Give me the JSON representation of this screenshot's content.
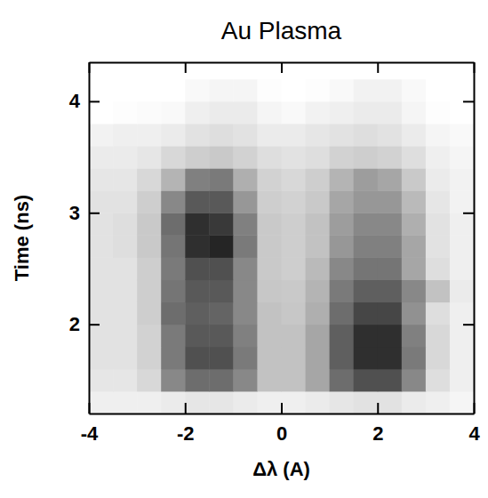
{
  "chart_data": {
    "type": "heatmap",
    "title": "Au Plasma",
    "x_label": "Δλ (A)",
    "y_label": "Time (ns)",
    "xlim": [
      -4,
      4
    ],
    "xticks": [
      -4,
      -2,
      0,
      2,
      4
    ],
    "ylim": [
      1.2,
      4.35
    ],
    "yticks": [
      2,
      3,
      4
    ],
    "x_bins": [
      -4,
      -3.5,
      -3,
      -2.5,
      -2,
      -1.5,
      -1,
      -0.5,
      0,
      0.5,
      1,
      1.5,
      2,
      2.5,
      3,
      3.5,
      4
    ],
    "y_bins": [
      1.2,
      1.4,
      1.6,
      1.8,
      2.0,
      2.2,
      2.4,
      2.6,
      2.8,
      3.0,
      3.2,
      3.4,
      3.6,
      3.8,
      4.0,
      4.2,
      4.4
    ],
    "zlim": [
      0,
      1
    ],
    "z": [
      [
        0.12,
        0.12,
        0.12,
        0.15,
        0.18,
        0.18,
        0.15,
        0.12,
        0.12,
        0.15,
        0.18,
        0.2,
        0.2,
        0.15,
        0.12,
        0.08
      ],
      [
        0.18,
        0.18,
        0.25,
        0.55,
        0.65,
        0.65,
        0.55,
        0.35,
        0.35,
        0.45,
        0.65,
        0.75,
        0.75,
        0.55,
        0.22,
        0.12
      ],
      [
        0.2,
        0.2,
        0.28,
        0.6,
        0.75,
        0.75,
        0.6,
        0.35,
        0.35,
        0.45,
        0.7,
        0.85,
        0.85,
        0.6,
        0.25,
        0.12
      ],
      [
        0.2,
        0.2,
        0.28,
        0.6,
        0.72,
        0.72,
        0.58,
        0.35,
        0.35,
        0.45,
        0.7,
        0.85,
        0.85,
        0.58,
        0.25,
        0.12
      ],
      [
        0.2,
        0.2,
        0.3,
        0.65,
        0.7,
        0.68,
        0.55,
        0.35,
        0.33,
        0.42,
        0.65,
        0.78,
        0.78,
        0.52,
        0.22,
        0.12
      ],
      [
        0.2,
        0.2,
        0.3,
        0.62,
        0.72,
        0.72,
        0.55,
        0.33,
        0.32,
        0.4,
        0.6,
        0.7,
        0.7,
        0.55,
        0.35,
        0.15
      ],
      [
        0.2,
        0.2,
        0.3,
        0.6,
        0.75,
        0.75,
        0.55,
        0.32,
        0.3,
        0.38,
        0.55,
        0.62,
        0.62,
        0.45,
        0.22,
        0.12
      ],
      [
        0.2,
        0.22,
        0.32,
        0.62,
        0.85,
        0.88,
        0.6,
        0.32,
        0.3,
        0.35,
        0.5,
        0.58,
        0.58,
        0.45,
        0.2,
        0.12
      ],
      [
        0.2,
        0.22,
        0.32,
        0.65,
        0.85,
        0.82,
        0.58,
        0.32,
        0.3,
        0.35,
        0.48,
        0.55,
        0.55,
        0.42,
        0.2,
        0.12
      ],
      [
        0.2,
        0.2,
        0.3,
        0.55,
        0.72,
        0.72,
        0.5,
        0.3,
        0.28,
        0.32,
        0.45,
        0.5,
        0.5,
        0.38,
        0.18,
        0.1
      ],
      [
        0.18,
        0.18,
        0.25,
        0.4,
        0.58,
        0.6,
        0.42,
        0.28,
        0.25,
        0.3,
        0.4,
        0.48,
        0.45,
        0.32,
        0.15,
        0.1
      ],
      [
        0.15,
        0.15,
        0.18,
        0.25,
        0.3,
        0.32,
        0.28,
        0.22,
        0.2,
        0.22,
        0.28,
        0.3,
        0.28,
        0.22,
        0.12,
        0.08
      ],
      [
        0.1,
        0.12,
        0.12,
        0.15,
        0.2,
        0.22,
        0.2,
        0.15,
        0.15,
        0.18,
        0.2,
        0.22,
        0.2,
        0.15,
        0.08,
        0.05
      ],
      [
        0,
        0.02,
        0.03,
        0.05,
        0.12,
        0.15,
        0.15,
        0.08,
        0.05,
        0.1,
        0.12,
        0.15,
        0.15,
        0.08,
        0.02,
        0
      ],
      [
        0,
        0,
        0,
        0,
        0.05,
        0.08,
        0.08,
        0.02,
        0,
        0.02,
        0.05,
        0.1,
        0.1,
        0.05,
        0,
        0
      ],
      [
        0,
        0,
        0,
        0,
        0,
        0,
        0,
        0,
        0,
        0,
        0,
        0,
        0,
        0,
        0,
        0
      ]
    ]
  }
}
